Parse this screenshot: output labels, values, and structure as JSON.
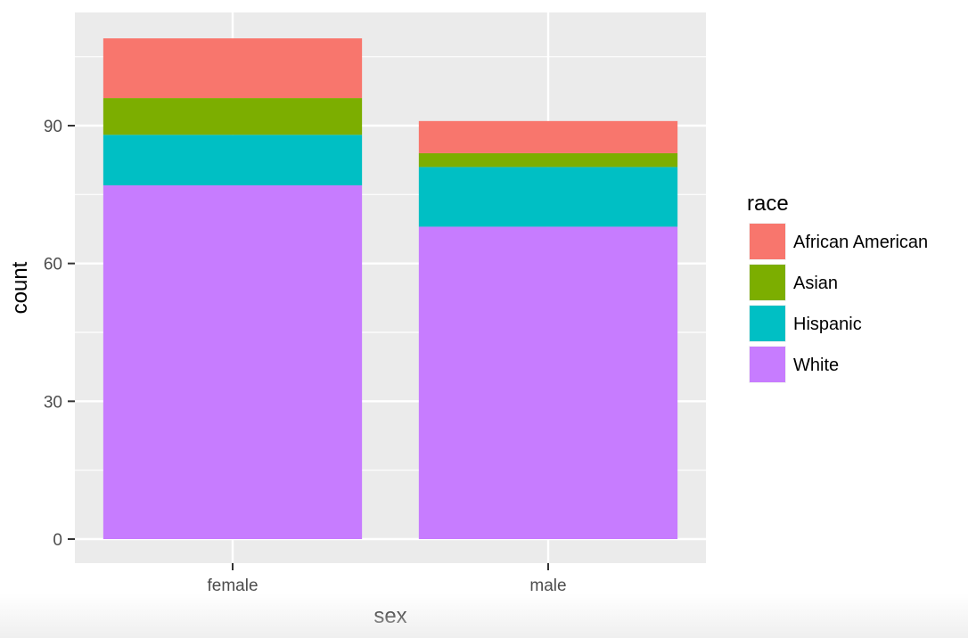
{
  "chart_data": {
    "type": "bar",
    "stacked": true,
    "categories": [
      "female",
      "male"
    ],
    "xlabel": "sex",
    "ylabel": "count",
    "ylim": [
      -4.5,
      114.5
    ],
    "y_ticks": [
      0,
      30,
      60,
      90
    ],
    "grid": true,
    "legend": {
      "title": "race",
      "position": "right"
    },
    "series": [
      {
        "name": "African American",
        "color": "#F8766D",
        "values": [
          13,
          7
        ]
      },
      {
        "name": "Asian",
        "color": "#7CAE00",
        "values": [
          8,
          3
        ]
      },
      {
        "name": "Hispanic",
        "color": "#00BFC4",
        "values": [
          11,
          13
        ]
      },
      {
        "name": "White",
        "color": "#C77CFF",
        "values": [
          77,
          68
        ]
      }
    ]
  }
}
